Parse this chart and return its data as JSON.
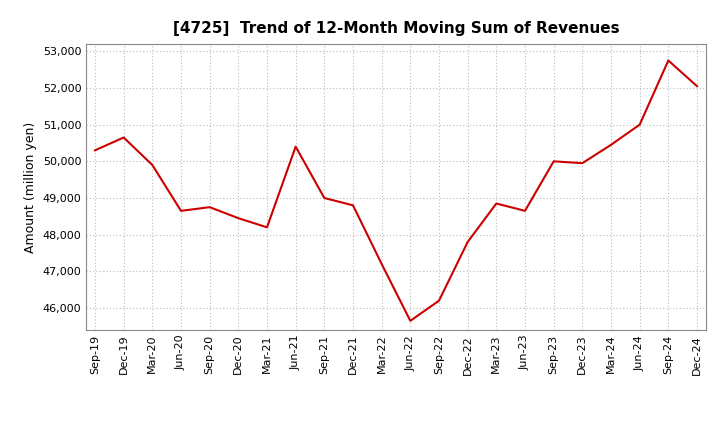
{
  "title": "[4725]  Trend of 12-Month Moving Sum of Revenues",
  "ylabel": "Amount (million yen)",
  "line_color": "#cc0000",
  "background_color": "#ffffff",
  "grid_color": "#bbbbbb",
  "x_labels": [
    "Sep-19",
    "Dec-19",
    "Mar-20",
    "Jun-20",
    "Sep-20",
    "Dec-20",
    "Mar-21",
    "Jun-21",
    "Sep-21",
    "Dec-21",
    "Mar-22",
    "Jun-22",
    "Sep-22",
    "Dec-22",
    "Mar-23",
    "Jun-23",
    "Sep-23",
    "Dec-23",
    "Mar-24",
    "Jun-24",
    "Sep-24",
    "Dec-24"
  ],
  "values": [
    50300,
    50650,
    49900,
    48650,
    48750,
    48450,
    48200,
    50400,
    49000,
    48800,
    47200,
    45650,
    46200,
    47800,
    48850,
    48650,
    50000,
    49950,
    50450,
    51000,
    52750,
    52050
  ],
  "ylim_min": 45400,
  "ylim_max": 53200,
  "yticks": [
    46000,
    47000,
    48000,
    49000,
    50000,
    51000,
    52000,
    53000
  ],
  "title_fontsize": 11,
  "label_fontsize": 9,
  "tick_fontsize": 8
}
